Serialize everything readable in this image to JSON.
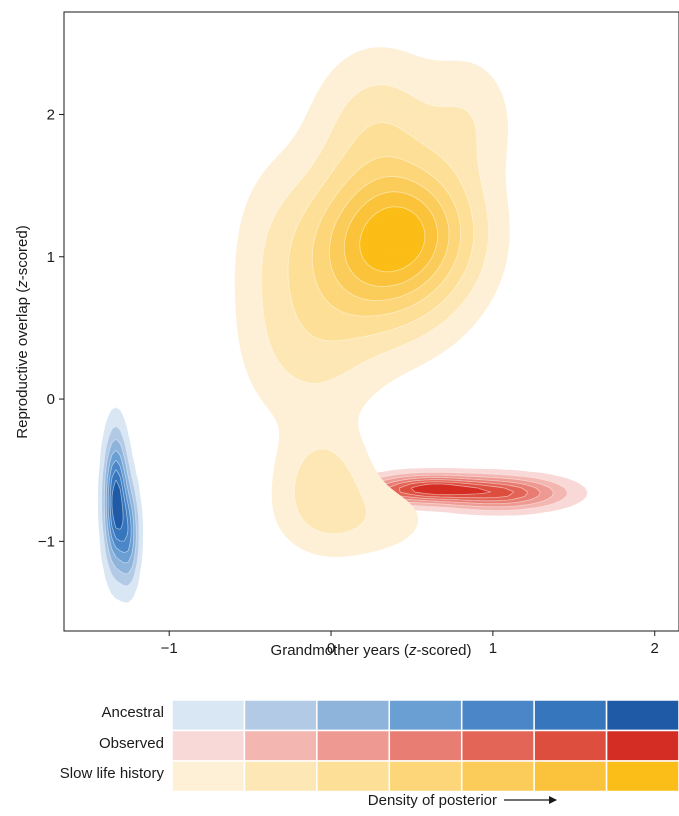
{
  "chart_data": {
    "type": "contour",
    "xlabel_parts": [
      "Grandmother years (",
      "z",
      "-scored)"
    ],
    "ylabel_parts": [
      "Reproductive overlap (",
      "z",
      "-scored)"
    ],
    "xlim": [
      -1.65,
      2.15
    ],
    "ylim": [
      -1.63,
      2.72
    ],
    "xticks": [
      -1,
      0,
      1,
      2
    ],
    "yticks": [
      -1,
      0,
      1,
      2
    ],
    "xtick_labels": [
      "−1",
      "0",
      "1",
      "2"
    ],
    "ytick_labels": [
      "−1",
      "0",
      "1",
      "2"
    ],
    "series": [
      {
        "name": "Ancestral",
        "colors": [
          "#d9e6f3",
          "#b2cae6",
          "#8fb4dc",
          "#6a9fd4",
          "#4a86c8",
          "#3676bc",
          "#1f5aa6"
        ],
        "mode": "Gaussian",
        "blobs": [
          {
            "x": -1.33,
            "y": -0.72,
            "sx": 0.045,
            "sy": 0.28,
            "w": 1.0
          },
          {
            "x": -1.25,
            "y": -0.95,
            "sx": 0.04,
            "sy": 0.22,
            "w": 0.55
          }
        ]
      },
      {
        "name": "Observed",
        "colors": [
          "#f9d8d8",
          "#f3b6b1",
          "#ee9a93",
          "#e87d73",
          "#e36557",
          "#dd4e3e",
          "#d42d23"
        ],
        "mode": "Gaussian",
        "blobs": [
          {
            "x": 0.6,
            "y": -0.63,
            "sx": 0.22,
            "sy": 0.06,
            "w": 1.0
          },
          {
            "x": 1.05,
            "y": -0.66,
            "sx": 0.24,
            "sy": 0.07,
            "w": 0.8
          },
          {
            "x": 0.2,
            "y": -0.68,
            "sx": 0.15,
            "sy": 0.05,
            "w": 0.35
          },
          {
            "x": 0.9,
            "y": 1.07,
            "sx": 0.07,
            "sy": 0.035,
            "w": 0.12
          },
          {
            "x": 0.7,
            "y": 0.85,
            "sx": 0.02,
            "sy": 0.015,
            "w": 0.06
          }
        ]
      },
      {
        "name": "Slow life history",
        "colors": [
          "#fdf0d6",
          "#fde7b4",
          "#fddf97",
          "#fcd679",
          "#fbcc5a",
          "#fbc33b",
          "#fbbd17"
        ],
        "mode": "Gaussian",
        "blobs": [
          {
            "x": 0.28,
            "y": 1.05,
            "sx": 0.32,
            "sy": 0.38,
            "w": 1.0
          },
          {
            "x": 0.55,
            "y": 1.2,
            "sx": 0.25,
            "sy": 0.3,
            "w": 0.5
          },
          {
            "x": 0.3,
            "y": 1.9,
            "sx": 0.25,
            "sy": 0.35,
            "w": 0.3
          },
          {
            "x": 0.85,
            "y": 1.95,
            "sx": 0.18,
            "sy": 0.3,
            "w": 0.18
          },
          {
            "x": -0.1,
            "y": 0.35,
            "sx": 0.25,
            "sy": 0.35,
            "w": 0.22
          },
          {
            "x": -0.05,
            "y": -0.6,
            "sx": 0.18,
            "sy": 0.25,
            "w": 0.3
          },
          {
            "x": 0.2,
            "y": -0.85,
            "sx": 0.3,
            "sy": 0.18,
            "w": 0.15
          },
          {
            "x": -0.35,
            "y": 0.9,
            "sx": 0.18,
            "sy": 0.5,
            "w": 0.12
          }
        ]
      }
    ],
    "legend": {
      "title": "Density of posterior",
      "position": "bottom",
      "rows": [
        "Ancestral",
        "Observed",
        "Slow life history"
      ]
    }
  }
}
